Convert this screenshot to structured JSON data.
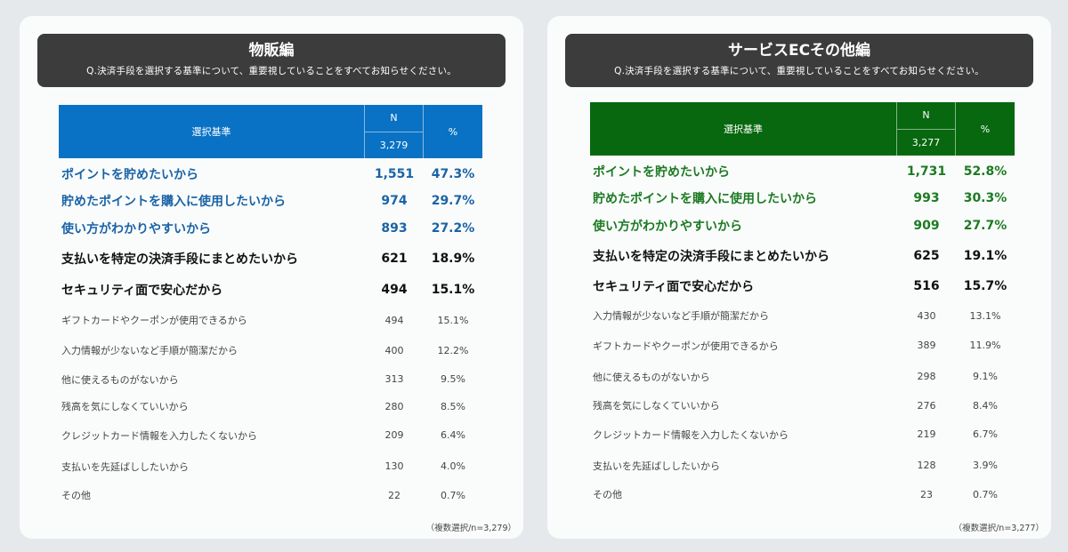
{
  "panels": [
    {
      "title": "物販編",
      "question": "Q.決済手段を選択する基準について、重要視していることをすべてお知らせください。",
      "header": {
        "criteria": "選択基準",
        "n": "N",
        "n_total": "3,279",
        "pct": "%"
      },
      "accent": "#0a72c4",
      "rows": [
        {
          "label": "ポイントを貯めたいから",
          "n": "1,551",
          "pct": "47.3%"
        },
        {
          "label": "貯めたポイントを購入に使用したいから",
          "n": "974",
          "pct": "29.7%"
        },
        {
          "label": "使い方がわかりやすいから",
          "n": "893",
          "pct": "27.2%"
        },
        {
          "label": "支払いを特定の決済手段にまとめたいから",
          "n": "621",
          "pct": "18.9%"
        },
        {
          "label": "セキュリティ面で安心だから",
          "n": "494",
          "pct": "15.1%"
        },
        {
          "label": "ギフトカードやクーポンが使用できるから",
          "n": "494",
          "pct": "15.1%"
        },
        {
          "label": "入力情報が少ないなど手順が簡潔だから",
          "n": "400",
          "pct": "12.2%"
        },
        {
          "label": "他に使えるものがないから",
          "n": "313",
          "pct": "9.5%"
        },
        {
          "label": "残高を気にしなくていいから",
          "n": "280",
          "pct": "8.5%"
        },
        {
          "label": "クレジットカード情報を入力したくないから",
          "n": "209",
          "pct": "6.4%"
        },
        {
          "label": "支払いを先延ばししたいから",
          "n": "130",
          "pct": "4.0%"
        },
        {
          "label": "その他",
          "n": "22",
          "pct": "0.7%"
        }
      ],
      "footnote": "（複数選択/n=3,279）"
    },
    {
      "title": "サービスECその他編",
      "question": "Q.決済手段を選択する基準について、重要視していることをすべてお知らせください。",
      "header": {
        "criteria": "選択基準",
        "n": "N",
        "n_total": "3,277",
        "pct": "%"
      },
      "accent": "#07680f",
      "rows": [
        {
          "label": "ポイントを貯めたいから",
          "n": "1,731",
          "pct": "52.8%"
        },
        {
          "label": "貯めたポイントを購入に使用したいから",
          "n": "993",
          "pct": "30.3%"
        },
        {
          "label": "使い方がわかりやすいから",
          "n": "909",
          "pct": "27.7%"
        },
        {
          "label": "支払いを特定の決済手段にまとめたいから",
          "n": "625",
          "pct": "19.1%"
        },
        {
          "label": "セキュリティ面で安心だから",
          "n": "516",
          "pct": "15.7%"
        },
        {
          "label": "入力情報が少ないなど手順が簡潔だから",
          "n": "430",
          "pct": "13.1%"
        },
        {
          "label": "ギフトカードやクーポンが使用できるから",
          "n": "389",
          "pct": "11.9%"
        },
        {
          "label": "他に使えるものがないから",
          "n": "298",
          "pct": "9.1%"
        },
        {
          "label": "残高を気にしなくていいから",
          "n": "276",
          "pct": "8.4%"
        },
        {
          "label": "クレジットカード情報を入力したくないから",
          "n": "219",
          "pct": "6.7%"
        },
        {
          "label": "支払いを先延ばししたいから",
          "n": "128",
          "pct": "3.9%"
        },
        {
          "label": "その他",
          "n": "23",
          "pct": "0.7%"
        }
      ],
      "footnote": "（複数選択/n=3,277）"
    }
  ]
}
